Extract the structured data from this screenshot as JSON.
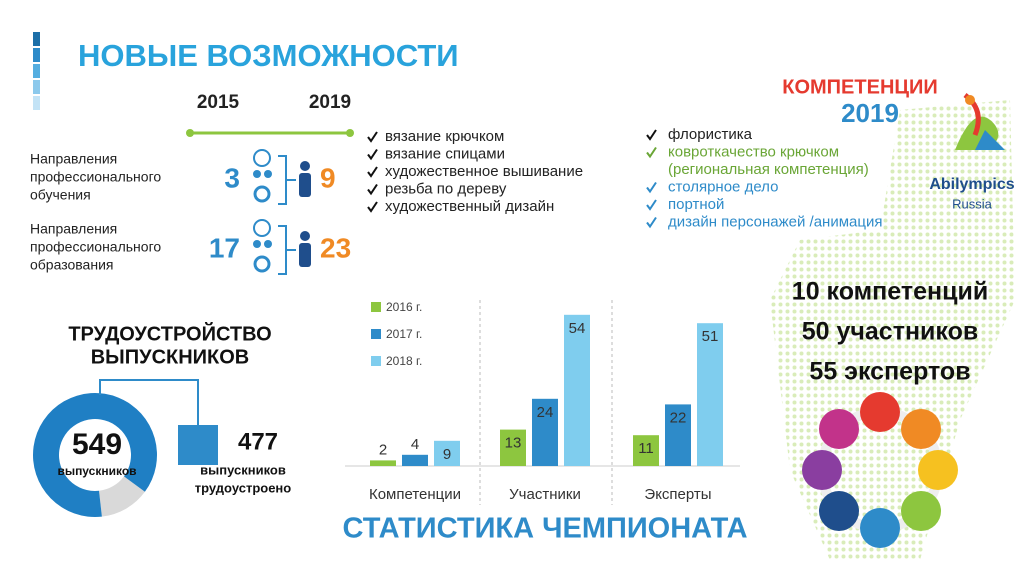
{
  "header": {
    "title": "НОВЫЕ ВОЗМОЖНОСТИ"
  },
  "directions": {
    "years": [
      "2015",
      "2019"
    ],
    "rows": [
      {
        "label": [
          "Направления",
          "профессионального",
          "обучения"
        ],
        "from": 3,
        "to": 9
      },
      {
        "label": [
          "Направления",
          "профессионального",
          "образования"
        ],
        "from": 17,
        "to": 23
      }
    ]
  },
  "competency_lists": {
    "left": [
      {
        "lines": [
          "вязание крючком"
        ],
        "color": "#222222"
      },
      {
        "lines": [
          "вязание спицами"
        ],
        "color": "#222222"
      },
      {
        "lines": [
          "художественное вышивание"
        ],
        "color": "#222222"
      },
      {
        "lines": [
          "резьба по дереву"
        ],
        "color": "#222222"
      },
      {
        "lines": [
          "художественный дизайн"
        ],
        "color": "#222222"
      }
    ],
    "right": [
      {
        "lines": [
          "флористика"
        ],
        "color": "#222222"
      },
      {
        "lines": [
          "ковроткачество крючком",
          "(региональная компетенция)"
        ],
        "color": "#6aa636"
      },
      {
        "lines": [
          "столярное дело"
        ],
        "color": "#2e8bc9"
      },
      {
        "lines": [
          "портной"
        ],
        "color": "#2e8bc9"
      },
      {
        "lines": [
          "дизайн персонажей /анимация"
        ],
        "color": "#2e8bc9"
      }
    ]
  },
  "competencies": {
    "title": "КОМПЕТЕНЦИИ",
    "year": "2019",
    "logo": [
      "Abilympics",
      "Russia"
    ],
    "stats": [
      "10 компетенций",
      "50 участников",
      "55 экспертов"
    ]
  },
  "employment": {
    "title": [
      "ТРУДОУСТРОЙСТВО",
      "ВЫПУСКНИКОВ"
    ],
    "total": 549,
    "total_label": "выпускников",
    "employed": 477,
    "employed_label": [
      "выпускников",
      "трудоустроено"
    ],
    "employed_color": "#1f7fc4",
    "rest_color": "#d9d9d9"
  },
  "chart_data": {
    "type": "bar",
    "title": "СТАТИСТИКА ЧЕМПИОНАТА",
    "categories": [
      "Компетенции",
      "Участники",
      "Эксперты"
    ],
    "series": [
      {
        "name": "2016 г.",
        "color": "#8dc63f",
        "values": [
          2,
          13,
          11
        ]
      },
      {
        "name": "2017 г.",
        "color": "#2e8bc9",
        "values": [
          4,
          24,
          22
        ]
      },
      {
        "name": "2018 г.",
        "color": "#7fcdee",
        "values": [
          9,
          54,
          51
        ]
      }
    ]
  }
}
